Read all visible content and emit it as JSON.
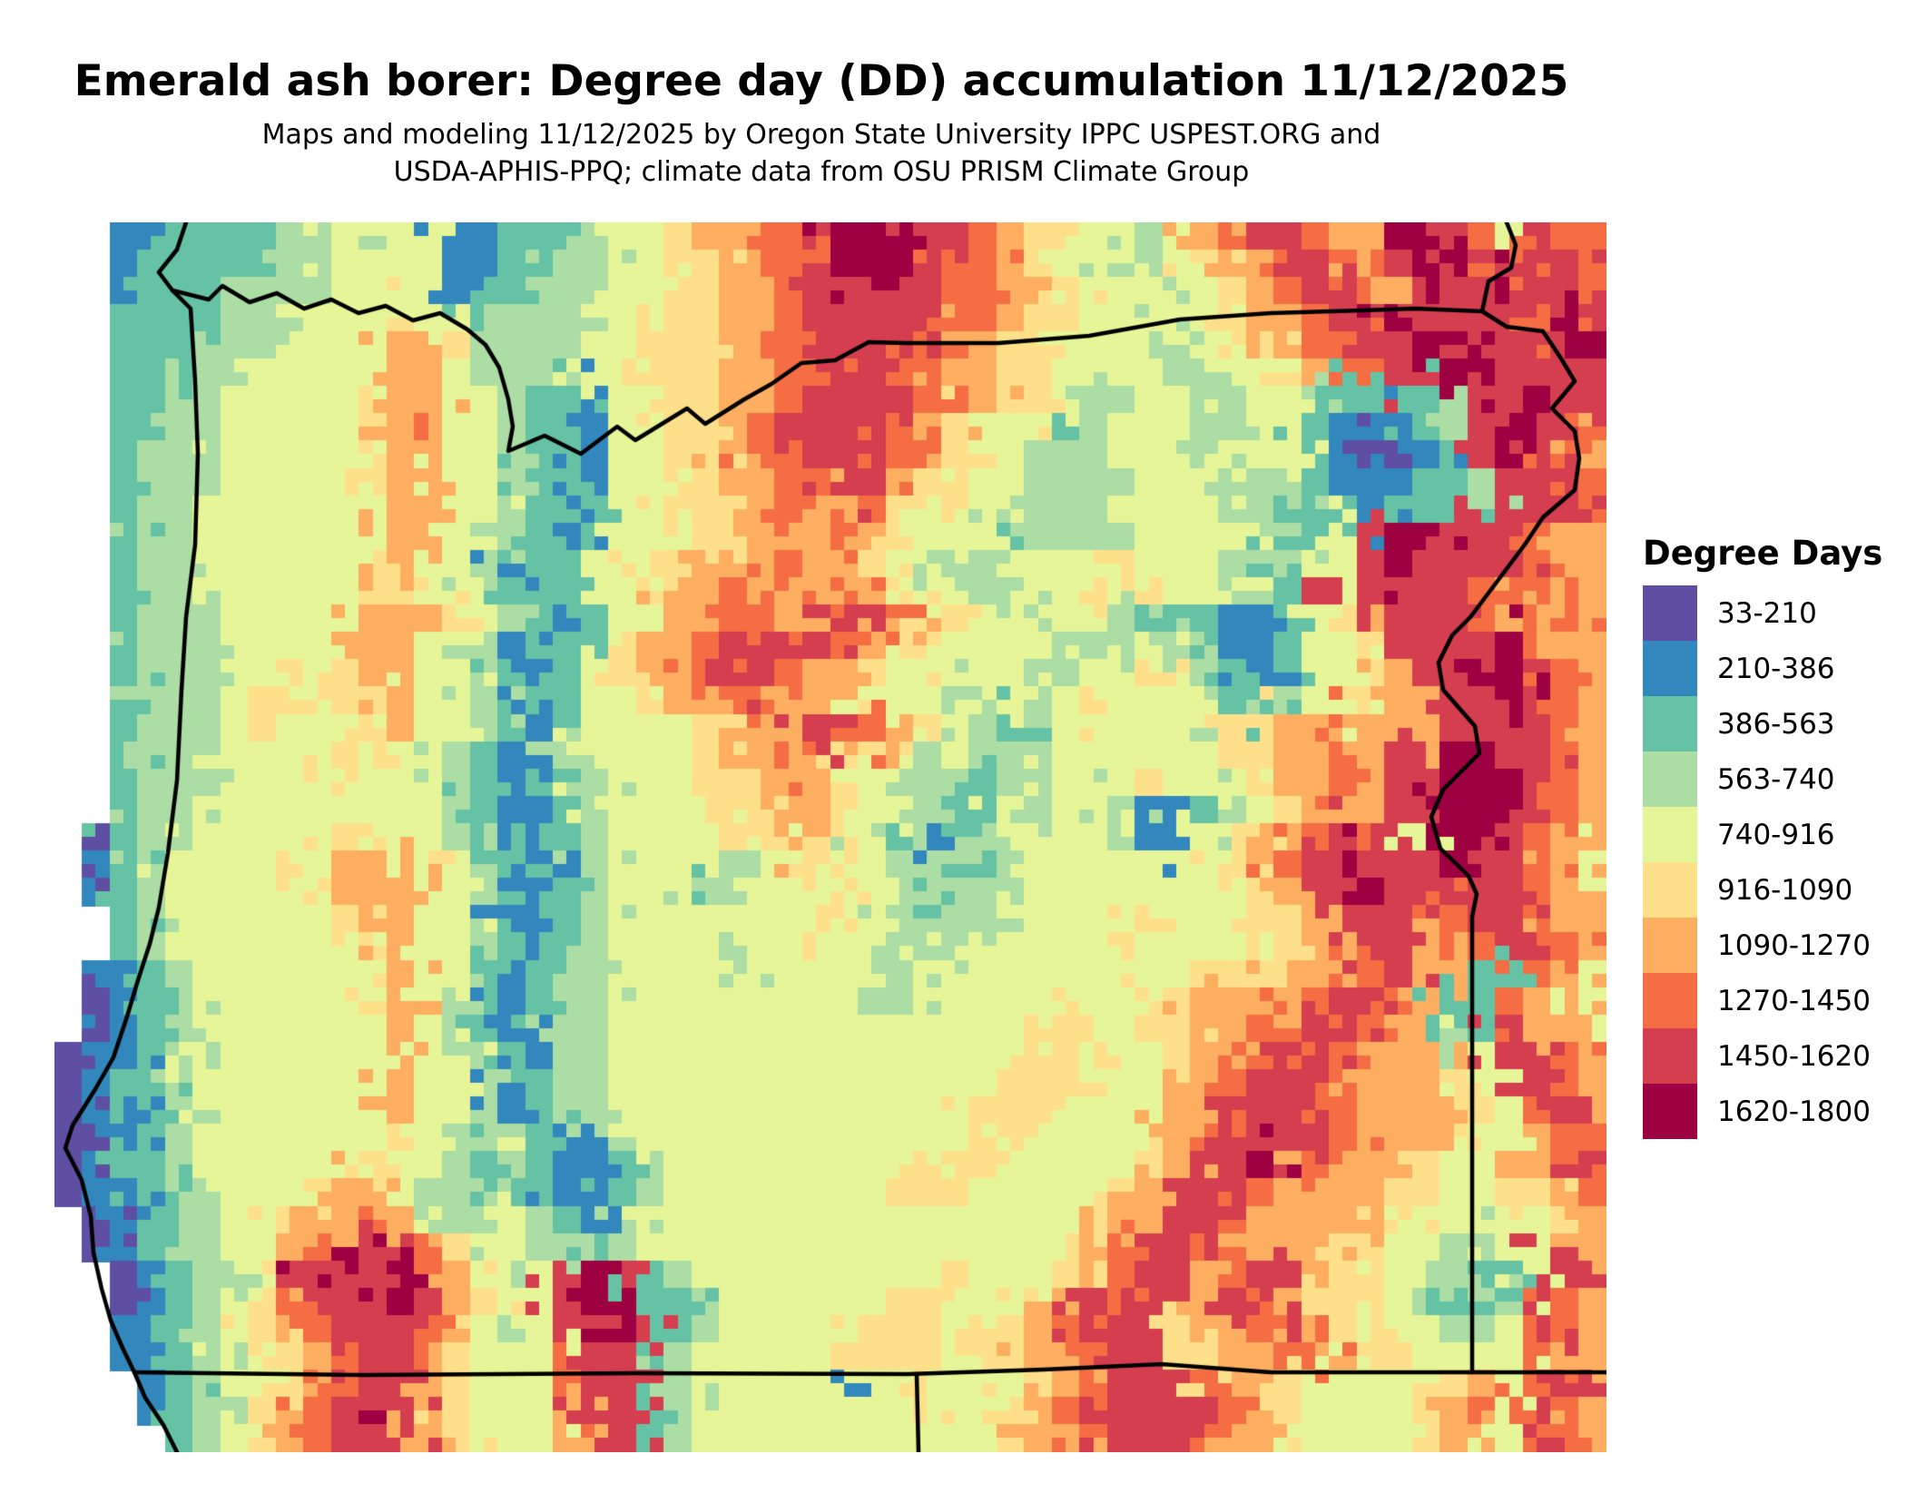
{
  "title": "Emerald ash borer: Degree day (DD) accumulation 11/12/2025",
  "subtitle_line1": "Maps and modeling 11/12/2025 by Oregon State University IPPC USPEST.ORG and",
  "subtitle_line2": "USDA-APHIS-PPQ; climate data from OSU PRISM Climate Group",
  "legend": {
    "title": "Degree Days",
    "classes": [
      {
        "label": "33-210",
        "color": "#5e4fa2"
      },
      {
        "label": "210-386",
        "color": "#3288bd"
      },
      {
        "label": "386-563",
        "color": "#66c2a5"
      },
      {
        "label": "563-740",
        "color": "#abdda4"
      },
      {
        "label": "740-916",
        "color": "#e6f598"
      },
      {
        "label": "916-1090",
        "color": "#fee08b"
      },
      {
        "label": "1090-1270",
        "color": "#fdae61"
      },
      {
        "label": "1270-1450",
        "color": "#f46d43"
      },
      {
        "label": "1450-1620",
        "color": "#d53e4f"
      },
      {
        "label": "1620-1800",
        "color": "#9e0142"
      }
    ]
  },
  "map": {
    "region": "Oregon, USA",
    "boundary_color": "#000000",
    "grid_cols": 56,
    "grid_rows": 45,
    "cell_classes": [
      "..11222233434411222344566778999887655443467887669987 877",
      "..122222334444112233445566789998776544334567887689987887",
      "..122233334444122333445566788988776654443456788768889887",
      "..222233344454423333445566788888776554444456678898888798",
      "..222333444466533334455567788887665544433456678889988889",
      "..222334444466433344555566778877665544443344567788998888",
      "..223344444566443221445566788887765543344334432222388988",
      "..223344444567443221445567888876544423444334521112389987",
      "..233344444466443221445567788876554333443344421001289876",
      "..233344444566443221444566778865544333344433321112238887",
      "..233444444466443212445556766754543333444433322122238887",
      "..233444444466443212444556667654442333344443224899888766",
      "..233444444564431224455666766543334444544432344898888766",
      "..233444444554432124456676677654433445454443284888877676",
      "..233344444666543212446677668876544344322211245688876676",
      "..233344446664431224566788887655444433343211244588889766",
      "..233344545664432124566788766544444334454321244568899876",
      "..233345545564431224456677665444334445444322344566889876",
      "..233345444564432124444556688765432344444455667666888876",
      "..233344445544321134444566765543433344444455667688998876",
      "..233344445444321243444556664433323344454445667688999876",
      "..233444444444321123444455665443224343311234567688999876",
      ".023344444554432122344445565432123444431145678878 998766",
      ".123444454666543211344423445543322344444445678988898876 ",
      ".023444445666443212344433444544333344444444568898878876 ",
      "..234444445664431223444444454432334444454445568887788766",
      "..234444444564432123444434444433344444544444566886678876",
      ".112344444446442123344443444433444444444455566778662276 ",
      ".012344444456432123344444444433444444445566667887622766 ",
      ".012344444446432113344444444444444455445566778876232866 ",
      "011234444444644321334444444444444445554456678876664 8876",
      "012234444445644312334444444444444455544466788766665 8876",
      "01123444444464431233444444444444455544446688887666654788",
      "001234444444544342113444444444444554444467898876665 4677",
      "012234444445443232112344444444455544444568898766654 6678",
      "011234444566433242112344444444555444445668876666554 5567",
      ".012234456676433432134444444444444444566887666665444 456",
      ".012334467988654433234444444444444445678876666554433 886",
      "..012334988897643489823444444444544456788678865544322 886",
      "..012345788898654489922344444455444568786688655443223876",
      "..112345678887643488982344444555455678885667865544334876",
      "..122345567886544478823444445555455667885566776554444766",
      "...1234456788654447882344444144544456788876554444456 788",
      "...1234567898654446882344444444544567888887654444567 876",
      "....234567888654446782344444444444566788876654444566 876"
    ],
    "boundaries": {
      "coastline": [
        [
          145,
          0
        ],
        [
          135,
          30
        ],
        [
          115,
          55
        ],
        [
          130,
          75
        ],
        [
          150,
          95
        ],
        [
          155,
          175
        ],
        [
          158,
          255
        ],
        [
          155,
          355
        ],
        [
          145,
          435
        ],
        [
          140,
          515
        ],
        [
          135,
          615
        ],
        [
          125,
          695
        ],
        [
          115,
          755
        ],
        [
          105,
          795
        ],
        [
          92,
          835
        ],
        [
          80,
          875
        ],
        [
          65,
          920
        ],
        [
          45,
          955
        ],
        [
          20,
          995
        ],
        [
          12,
          1020
        ],
        [
          30,
          1055
        ],
        [
          40,
          1095
        ],
        [
          43,
          1135
        ],
        [
          52,
          1175
        ],
        [
          62,
          1210
        ],
        [
          75,
          1240
        ],
        [
          88,
          1267
        ],
        [
          100,
          1295
        ],
        [
          120,
          1325
        ],
        [
          135,
          1355
        ]
      ],
      "columbia_river_wa_border": [
        [
          130,
          75
        ],
        [
          170,
          85
        ],
        [
          185,
          70
        ],
        [
          215,
          88
        ],
        [
          245,
          78
        ],
        [
          275,
          95
        ],
        [
          305,
          85
        ],
        [
          335,
          100
        ],
        [
          365,
          92
        ],
        [
          395,
          108
        ],
        [
          425,
          100
        ],
        [
          455,
          118
        ],
        [
          475,
          135
        ],
        [
          490,
          160
        ],
        [
          500,
          195
        ],
        [
          505,
          225
        ],
        [
          500,
          252
        ],
        [
          540,
          235
        ],
        [
          580,
          255
        ],
        [
          620,
          225
        ],
        [
          640,
          240
        ],
        [
          697,
          205
        ],
        [
          717,
          222
        ],
        [
          760,
          195
        ],
        [
          790,
          178
        ],
        [
          823,
          155
        ],
        [
          860,
          152
        ],
        [
          897,
          132
        ],
        [
          940,
          133
        ],
        [
          1040,
          133
        ],
        [
          1140,
          125
        ],
        [
          1240,
          107
        ],
        [
          1340,
          100
        ],
        [
          1440,
          97
        ],
        [
          1500,
          95
        ],
        [
          1573,
          98
        ]
      ],
      "snake_river_north": [
        [
          1573,
          98
        ],
        [
          1580,
          65
        ],
        [
          1605,
          50
        ],
        [
          1610,
          25
        ],
        [
          1600,
          0
        ]
      ],
      "idaho_border": [
        [
          1573,
          98
        ],
        [
          1600,
          115
        ],
        [
          1640,
          120
        ],
        [
          1660,
          150
        ],
        [
          1675,
          175
        ],
        [
          1650,
          205
        ],
        [
          1675,
          230
        ],
        [
          1680,
          260
        ],
        [
          1675,
          295
        ],
        [
          1640,
          325
        ],
        [
          1620,
          355
        ],
        [
          1590,
          395
        ],
        [
          1560,
          435
        ],
        [
          1540,
          455
        ],
        [
          1525,
          485
        ],
        [
          1530,
          515
        ],
        [
          1565,
          555
        ],
        [
          1570,
          585
        ],
        [
          1530,
          625
        ],
        [
          1517,
          655
        ],
        [
          1527,
          690
        ],
        [
          1558,
          720
        ],
        [
          1567,
          740
        ],
        [
          1562,
          765
        ],
        [
          1562,
          1267
        ]
      ],
      "southern_border": [
        [
          88,
          1267
        ],
        [
          340,
          1270
        ],
        [
          640,
          1268
        ],
        [
          940,
          1269
        ],
        [
          1090,
          1264
        ],
        [
          1220,
          1258
        ],
        [
          1340,
          1267
        ],
        [
          1562,
          1267
        ],
        [
          1710,
          1267
        ]
      ],
      "ca_nv_border": [
        [
          950,
          1269
        ],
        [
          952,
          1355
        ]
      ]
    }
  }
}
